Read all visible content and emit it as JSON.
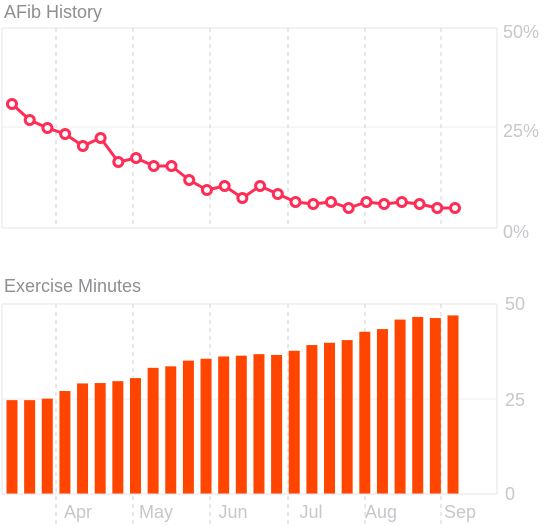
{
  "chart_data": [
    {
      "type": "line",
      "title": "AFib History",
      "ylim": [
        0,
        50
      ],
      "yticks": [
        "50%",
        "25%",
        "0%"
      ],
      "grid": true,
      "series_color": "#ff2d55",
      "values": [
        31,
        27,
        25,
        23.5,
        20.5,
        22.5,
        16.5,
        17.5,
        15.5,
        15.5,
        12,
        9.5,
        10.5,
        7.5,
        10.5,
        8.5,
        6.5,
        6,
        6.5,
        5,
        6.5,
        6,
        6.5,
        6,
        5,
        5
      ]
    },
    {
      "type": "bar",
      "title": "Exercise Minutes",
      "ylim": [
        0,
        50
      ],
      "yticks": [
        "50",
        "25",
        "0"
      ],
      "grid": true,
      "series_color": "#ff4500",
      "values": [
        24.7,
        24.7,
        25.1,
        27.1,
        29.1,
        29.2,
        29.7,
        30.5,
        33.2,
        33.6,
        35.1,
        35.6,
        36.2,
        36.4,
        36.8,
        36.6,
        37.7,
        39.2,
        39.8,
        40.5,
        42.7,
        43.4,
        45.9,
        46.6,
        46.3,
        47.0
      ]
    }
  ],
  "months": [
    "Apr",
    "May",
    "Jun",
    "Jul",
    "Aug",
    "Sep"
  ]
}
